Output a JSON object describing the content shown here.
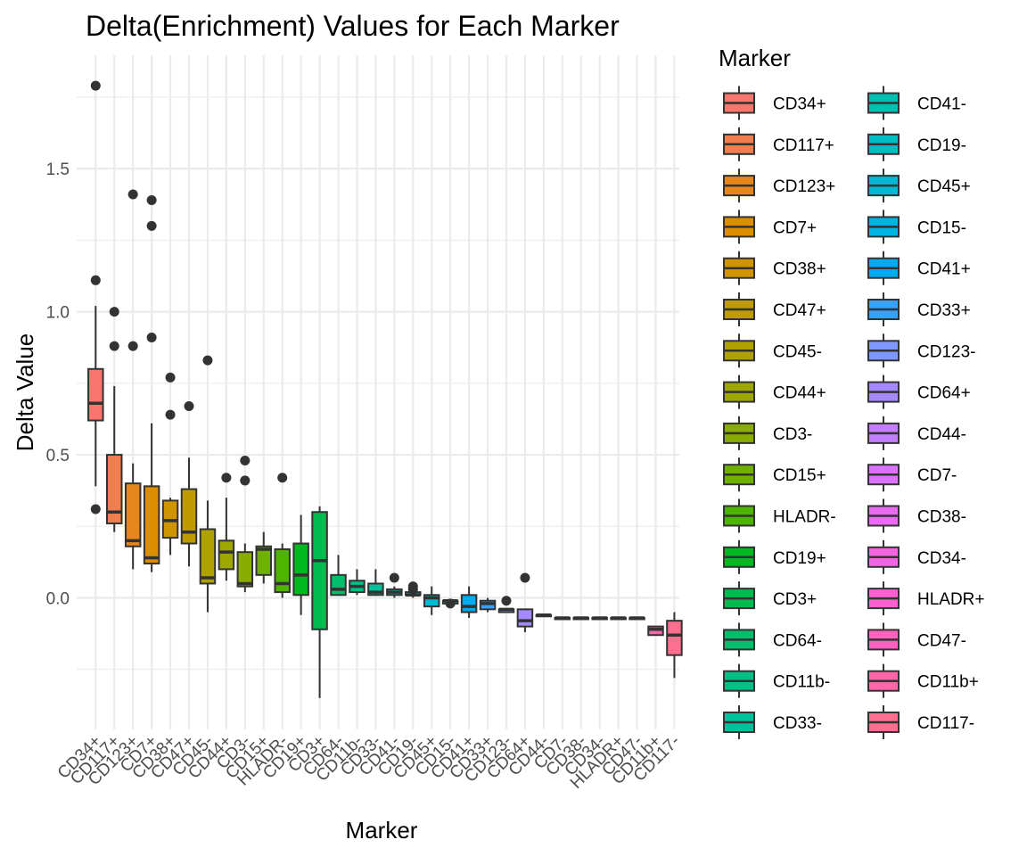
{
  "chart_data": {
    "type": "boxplot",
    "title": "Delta(Enrichment) Values for Each Marker",
    "xlabel": "Marker",
    "ylabel": "Delta Value",
    "ylim": [
      -0.45,
      1.85
    ],
    "yticks": [
      0.0,
      0.5,
      1.0,
      1.5
    ],
    "ytick_labels": [
      "0.0",
      "0.5",
      "1.0",
      "1.5"
    ],
    "grid": true,
    "legend": {
      "title": "Marker",
      "placement": "right",
      "columns": 2
    },
    "categories": [
      "CD34+",
      "CD117+",
      "CD123+",
      "CD7+",
      "CD38+",
      "CD47+",
      "CD45-",
      "CD44+",
      "CD3-",
      "CD15+",
      "HLADR-",
      "CD19+",
      "CD3+",
      "CD64-",
      "CD11b-",
      "CD33-",
      "CD41-",
      "CD19-",
      "CD45+",
      "CD15-",
      "CD41+",
      "CD33+",
      "CD123-",
      "CD64+",
      "CD44-",
      "CD7-",
      "CD38-",
      "CD34-",
      "HLADR+",
      "CD47-",
      "CD11b+",
      "CD117-"
    ],
    "colors": [
      "#F8766D",
      "#F17E4F",
      "#E7861B",
      "#DB8E00",
      "#CF9400",
      "#BF9B00",
      "#AFA100",
      "#9DA700",
      "#88AC00",
      "#6FB100",
      "#4DB400",
      "#00B81F",
      "#00BB4E",
      "#00BE6C",
      "#00C086",
      "#00C19C",
      "#00C0B2",
      "#00BDC4",
      "#00B8D4",
      "#00B3E3",
      "#00ACEF",
      "#35A2FF",
      "#7E98FF",
      "#A58AFF",
      "#C37DFF",
      "#DA72FB",
      "#EA6AF1",
      "#F564E3",
      "#FD61D1",
      "#FF62BE",
      "#FF67A8",
      "#FC6F8E"
    ],
    "boxes": [
      {
        "lo": 0.39,
        "q1": 0.62,
        "med": 0.68,
        "q3": 0.8,
        "hi": 1.02,
        "out": [
          1.79,
          1.11,
          0.31
        ]
      },
      {
        "lo": 0.23,
        "q1": 0.26,
        "med": 0.3,
        "q3": 0.5,
        "hi": 0.74,
        "out": [
          1.0,
          0.88
        ]
      },
      {
        "lo": 0.1,
        "q1": 0.18,
        "med": 0.2,
        "q3": 0.4,
        "hi": 0.47,
        "out": [
          1.41,
          0.88
        ]
      },
      {
        "lo": 0.09,
        "q1": 0.12,
        "med": 0.14,
        "q3": 0.39,
        "hi": 0.61,
        "out": [
          1.39,
          1.3,
          0.91
        ]
      },
      {
        "lo": 0.15,
        "q1": 0.21,
        "med": 0.27,
        "q3": 0.34,
        "hi": 0.35,
        "out": [
          0.77,
          0.64
        ]
      },
      {
        "lo": 0.11,
        "q1": 0.19,
        "med": 0.23,
        "q3": 0.38,
        "hi": 0.49,
        "out": [
          0.67
        ]
      },
      {
        "lo": -0.05,
        "q1": 0.05,
        "med": 0.07,
        "q3": 0.24,
        "hi": 0.34,
        "out": [
          0.83
        ]
      },
      {
        "lo": 0.06,
        "q1": 0.1,
        "med": 0.16,
        "q3": 0.2,
        "hi": 0.35,
        "out": [
          0.42
        ]
      },
      {
        "lo": 0.02,
        "q1": 0.04,
        "med": 0.05,
        "q3": 0.16,
        "hi": 0.19,
        "out": [
          0.48,
          0.41
        ]
      },
      {
        "lo": 0.05,
        "q1": 0.08,
        "med": 0.17,
        "q3": 0.18,
        "hi": 0.23,
        "out": []
      },
      {
        "lo": 0.0,
        "q1": 0.02,
        "med": 0.05,
        "q3": 0.17,
        "hi": 0.19,
        "out": [
          0.42
        ]
      },
      {
        "lo": -0.06,
        "q1": 0.01,
        "med": 0.08,
        "q3": 0.19,
        "hi": 0.29,
        "out": []
      },
      {
        "lo": -0.35,
        "q1": -0.11,
        "med": 0.13,
        "q3": 0.3,
        "hi": 0.32,
        "out": []
      },
      {
        "lo": 0.01,
        "q1": 0.01,
        "med": 0.03,
        "q3": 0.08,
        "hi": 0.15,
        "out": []
      },
      {
        "lo": 0.01,
        "q1": 0.02,
        "med": 0.04,
        "q3": 0.06,
        "hi": 0.1,
        "out": []
      },
      {
        "lo": 0.01,
        "q1": 0.01,
        "med": 0.02,
        "q3": 0.05,
        "hi": 0.1,
        "out": []
      },
      {
        "lo": 0.0,
        "q1": 0.01,
        "med": 0.02,
        "q3": 0.03,
        "hi": 0.04,
        "out": [
          0.07
        ]
      },
      {
        "lo": 0.0,
        "q1": 0.01,
        "med": 0.01,
        "q3": 0.02,
        "hi": 0.02,
        "out": [
          0.04,
          0.03
        ]
      },
      {
        "lo": -0.06,
        "q1": -0.03,
        "med": 0.0,
        "q3": 0.01,
        "hi": 0.04,
        "out": []
      },
      {
        "lo": -0.02,
        "q1": -0.02,
        "med": -0.01,
        "q3": -0.01,
        "hi": -0.01,
        "out": [
          -0.02
        ]
      },
      {
        "lo": -0.07,
        "q1": -0.05,
        "med": -0.03,
        "q3": 0.01,
        "hi": 0.04,
        "out": []
      },
      {
        "lo": -0.05,
        "q1": -0.04,
        "med": -0.02,
        "q3": -0.01,
        "hi": 0.0,
        "out": []
      },
      {
        "lo": -0.05,
        "q1": -0.05,
        "med": -0.04,
        "q3": -0.04,
        "hi": -0.04,
        "out": [
          -0.01
        ]
      },
      {
        "lo": -0.12,
        "q1": -0.1,
        "med": -0.08,
        "q3": -0.04,
        "hi": -0.04,
        "out": [
          0.07
        ]
      },
      {
        "lo": -0.06,
        "q1": -0.06,
        "med": -0.06,
        "q3": -0.06,
        "hi": -0.06,
        "out": []
      },
      {
        "lo": -0.07,
        "q1": -0.07,
        "med": -0.07,
        "q3": -0.07,
        "hi": -0.07,
        "out": []
      },
      {
        "lo": -0.07,
        "q1": -0.07,
        "med": -0.07,
        "q3": -0.07,
        "hi": -0.07,
        "out": []
      },
      {
        "lo": -0.07,
        "q1": -0.07,
        "med": -0.07,
        "q3": -0.07,
        "hi": -0.07,
        "out": []
      },
      {
        "lo": -0.07,
        "q1": -0.07,
        "med": -0.07,
        "q3": -0.07,
        "hi": -0.07,
        "out": []
      },
      {
        "lo": -0.07,
        "q1": -0.07,
        "med": -0.07,
        "q3": -0.07,
        "hi": -0.07,
        "out": []
      },
      {
        "lo": -0.13,
        "q1": -0.13,
        "med": -0.11,
        "q3": -0.1,
        "hi": -0.1,
        "out": []
      },
      {
        "lo": -0.28,
        "q1": -0.2,
        "med": -0.13,
        "q3": -0.08,
        "hi": -0.05,
        "out": []
      }
    ]
  }
}
